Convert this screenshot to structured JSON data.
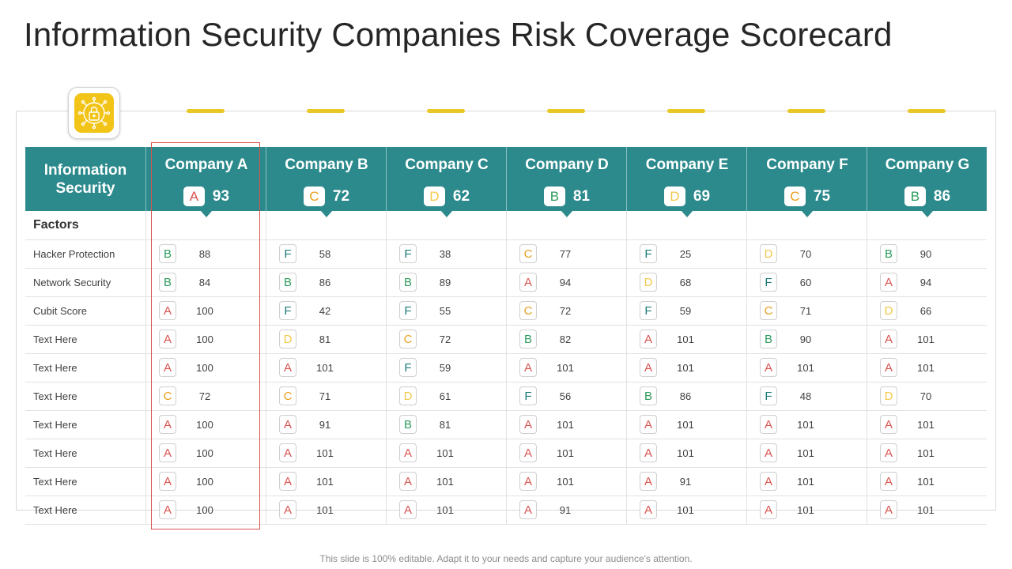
{
  "title": "Information Security Companies Risk Coverage Scorecard",
  "header_label": "Information Security",
  "factors_label": "Factors",
  "colors": {
    "A": "#d9534f",
    "B": "#2e9b5e",
    "C": "#e8a020",
    "D": "#f2c94c",
    "F": "#1f7a7a",
    "header": "#2c8a8c",
    "accent": "#e9c825"
  },
  "companies": [
    {
      "name": "Company A",
      "grade": "A",
      "score": "93"
    },
    {
      "name": "Company B",
      "grade": "C",
      "score": "72"
    },
    {
      "name": "Company C",
      "grade": "D",
      "score": "62"
    },
    {
      "name": "Company D",
      "grade": "B",
      "score": "81"
    },
    {
      "name": "Company E",
      "grade": "D",
      "score": "69"
    },
    {
      "name": "Company F",
      "grade": "C",
      "score": "75"
    },
    {
      "name": "Company G",
      "grade": "B",
      "score": "86"
    }
  ],
  "rows": [
    {
      "factor": "Hacker Protection",
      "cells": [
        [
          "B",
          "88"
        ],
        [
          "F",
          "58"
        ],
        [
          "F",
          "38"
        ],
        [
          "C",
          "77"
        ],
        [
          "F",
          "25"
        ],
        [
          "D",
          "70"
        ],
        [
          "B",
          "90"
        ]
      ]
    },
    {
      "factor": "Network Security",
      "cells": [
        [
          "B",
          "84"
        ],
        [
          "B",
          "86"
        ],
        [
          "B",
          "89"
        ],
        [
          "A",
          "94"
        ],
        [
          "D",
          "68"
        ],
        [
          "F",
          "60"
        ],
        [
          "A",
          "94"
        ]
      ]
    },
    {
      "factor": "Cubit Score",
      "cells": [
        [
          "A",
          "100"
        ],
        [
          "F",
          "42"
        ],
        [
          "F",
          "55"
        ],
        [
          "C",
          "72"
        ],
        [
          "F",
          "59"
        ],
        [
          "C",
          "71"
        ],
        [
          "D",
          "66"
        ]
      ]
    },
    {
      "factor": "Text Here",
      "cells": [
        [
          "A",
          "100"
        ],
        [
          "D",
          "81"
        ],
        [
          "C",
          "72"
        ],
        [
          "B",
          "82"
        ],
        [
          "A",
          "101"
        ],
        [
          "B",
          "90"
        ],
        [
          "A",
          "101"
        ]
      ]
    },
    {
      "factor": "Text Here",
      "cells": [
        [
          "A",
          "100"
        ],
        [
          "A",
          "101"
        ],
        [
          "F",
          "59"
        ],
        [
          "A",
          "101"
        ],
        [
          "A",
          "101"
        ],
        [
          "A",
          "101"
        ],
        [
          "A",
          "101"
        ]
      ]
    },
    {
      "factor": "Text Here",
      "cells": [
        [
          "C",
          "72"
        ],
        [
          "C",
          "71"
        ],
        [
          "D",
          "61"
        ],
        [
          "F",
          "56"
        ],
        [
          "B",
          "86"
        ],
        [
          "F",
          "48"
        ],
        [
          "D",
          "70"
        ]
      ]
    },
    {
      "factor": "Text Here",
      "cells": [
        [
          "A",
          "100"
        ],
        [
          "A",
          "91"
        ],
        [
          "B",
          "81"
        ],
        [
          "A",
          "101"
        ],
        [
          "A",
          "101"
        ],
        [
          "A",
          "101"
        ],
        [
          "A",
          "101"
        ]
      ]
    },
    {
      "factor": "Text Here",
      "cells": [
        [
          "A",
          "100"
        ],
        [
          "A",
          "101"
        ],
        [
          "A",
          "101"
        ],
        [
          "A",
          "101"
        ],
        [
          "A",
          "101"
        ],
        [
          "A",
          "101"
        ],
        [
          "A",
          "101"
        ]
      ]
    },
    {
      "factor": "Text Here",
      "cells": [
        [
          "A",
          "100"
        ],
        [
          "A",
          "101"
        ],
        [
          "A",
          "101"
        ],
        [
          "A",
          "101"
        ],
        [
          "A",
          "91"
        ],
        [
          "A",
          "101"
        ],
        [
          "A",
          "101"
        ]
      ]
    },
    {
      "factor": "Text Here",
      "cells": [
        [
          "A",
          "100"
        ],
        [
          "A",
          "101"
        ],
        [
          "A",
          "101"
        ],
        [
          "A",
          "91"
        ],
        [
          "A",
          "101"
        ],
        [
          "A",
          "101"
        ],
        [
          "A",
          "101"
        ]
      ]
    }
  ],
  "footer": "This slide is 100% editable. Adapt it to your needs and capture your audience's attention."
}
